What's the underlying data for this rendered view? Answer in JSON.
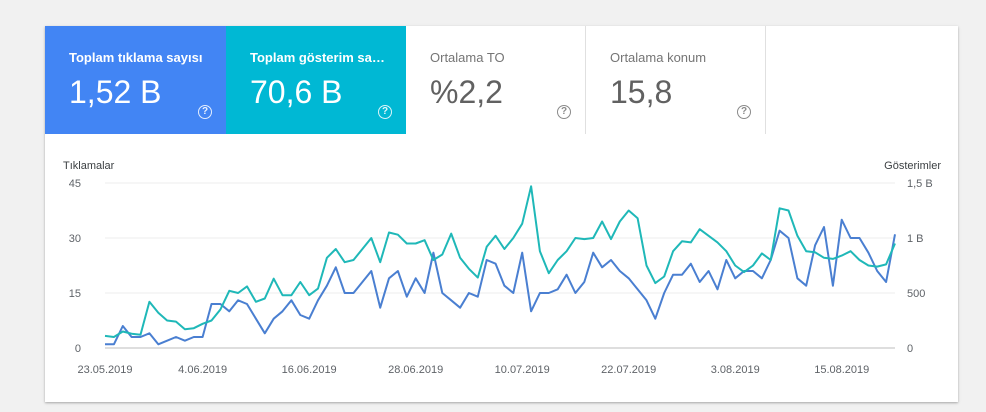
{
  "tiles": [
    {
      "label": "Toplam tıklama sayısı",
      "value": "1,52 B"
    },
    {
      "label": "Toplam gösterim sayısı",
      "value": "70,6 B"
    },
    {
      "label": "Ortalama TO",
      "value": "%2,2"
    },
    {
      "label": "Ortalama konum",
      "value": "15,8"
    }
  ],
  "help_glyph": "?",
  "colors": {
    "clicks": "#4a7fd1",
    "impressions": "#1fb8b8",
    "tile_clicks": "#4285f4",
    "tile_impressions": "#00b8d4"
  },
  "chart_data": {
    "type": "line",
    "ylabel_left": "Tıklamalar",
    "ylabel_right": "Gösterimler",
    "y_left_ticks": [
      "45",
      "30",
      "15",
      "0"
    ],
    "y_right_ticks": [
      "1,5 B",
      "1 B",
      "500",
      "0"
    ],
    "ylim_left": [
      0,
      45
    ],
    "ylim_right": [
      0,
      1500
    ],
    "x_ticks": [
      "23.05.2019",
      "4.06.2019",
      "16.06.2019",
      "28.06.2019",
      "10.07.2019",
      "22.07.2019",
      "3.08.2019",
      "15.08.2019"
    ],
    "grid": true,
    "series": [
      {
        "name": "Tıklamalar",
        "axis": "left",
        "color": "#4a7fd1",
        "values": [
          1,
          1,
          6,
          3,
          3,
          4,
          1,
          2,
          3,
          2,
          3,
          3,
          12,
          12,
          10,
          13,
          12,
          8,
          4,
          8,
          10,
          13,
          9,
          8,
          13,
          17,
          22,
          15,
          15,
          18,
          21,
          11,
          19,
          21,
          14,
          19,
          15,
          26,
          15,
          13,
          11,
          15,
          14,
          24,
          23,
          17,
          15,
          26,
          10,
          15,
          15,
          16,
          20,
          15,
          18,
          26,
          22,
          24,
          21,
          19,
          16,
          13,
          8,
          15,
          20,
          20,
          23,
          18,
          21,
          16,
          24,
          19,
          21,
          21,
          19,
          24,
          32,
          30,
          19,
          17,
          28,
          33,
          17,
          35,
          30,
          30,
          26,
          21,
          18,
          31
        ]
      },
      {
        "name": "Gösterimler",
        "axis": "right",
        "color": "#1fb8b8",
        "values": [
          110,
          100,
          150,
          130,
          120,
          420,
          320,
          250,
          240,
          170,
          180,
          220,
          250,
          350,
          520,
          500,
          560,
          420,
          450,
          630,
          480,
          480,
          600,
          480,
          540,
          820,
          900,
          780,
          800,
          900,
          1000,
          780,
          1050,
          1030,
          950,
          950,
          980,
          800,
          850,
          1040,
          820,
          720,
          640,
          920,
          1020,
          900,
          1000,
          1130,
          1470,
          880,
          680,
          800,
          880,
          1000,
          990,
          1000,
          1150,
          990,
          1150,
          1250,
          1180,
          750,
          590,
          650,
          880,
          970,
          960,
          1080,
          1020,
          960,
          880,
          750,
          690,
          750,
          860,
          800,
          1270,
          1250,
          1020,
          880,
          870,
          820,
          810,
          840,
          880,
          800,
          750,
          740,
          760,
          950
        ]
      }
    ]
  }
}
